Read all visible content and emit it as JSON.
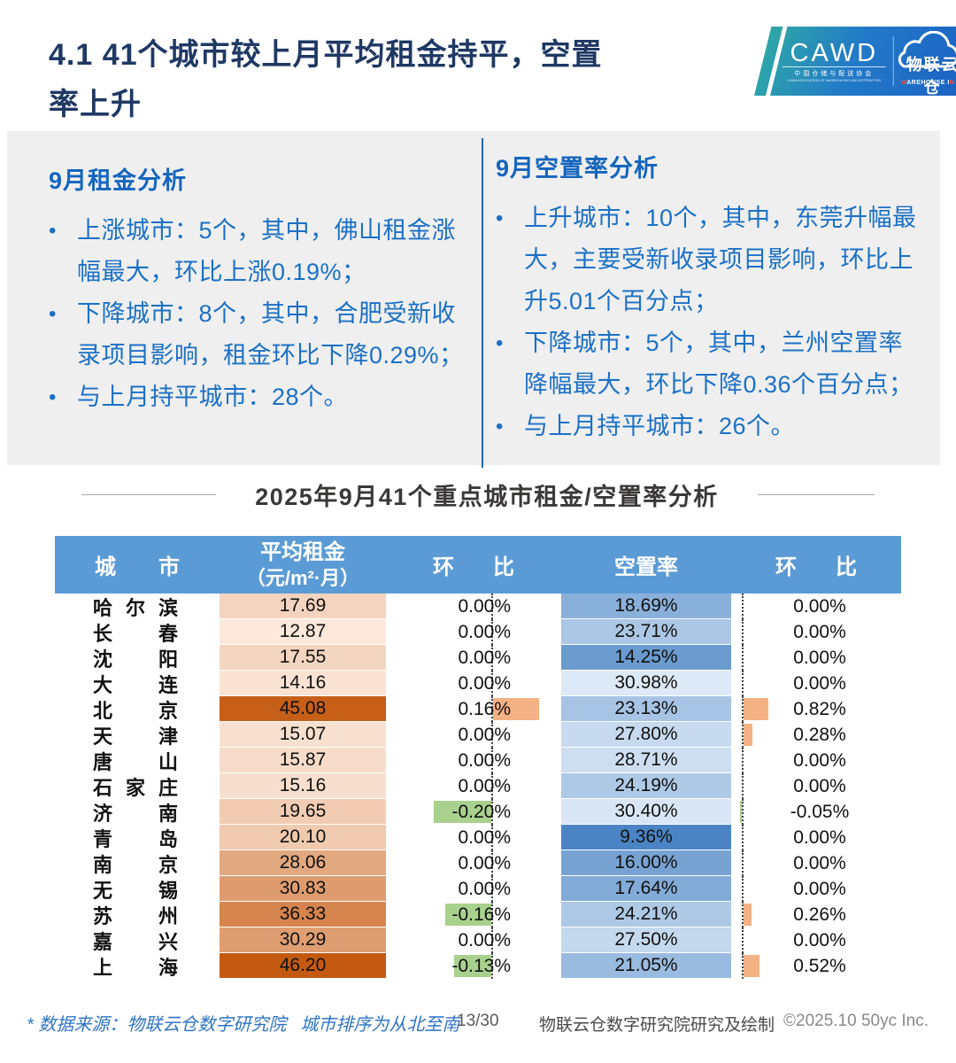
{
  "header": {
    "title_line1": "4.1 41个城市较上月平均租金持平，空置",
    "title_line2": "率上升",
    "logo": {
      "cawd": "CAWD",
      "cawd_cn": "中国仓储与配送协会",
      "cawd_en": "CHINA ASSOCIATION OF WAREHOUSING AND DISTRIBUTION",
      "cloud_cn": "物联云仓",
      "cloud_en_parts": [
        {
          "t": "W",
          "red": true
        },
        {
          "t": "AREHOUSE I",
          "red": false
        },
        {
          "t": "N",
          "red": true
        },
        {
          "t": " ",
          "red": false
        },
        {
          "t": "C",
          "red": true
        },
        {
          "t": "LOUD",
          "red": false
        }
      ]
    }
  },
  "analysis": {
    "sections": [
      {
        "id": "rent",
        "heading": "9月租金分析",
        "bullets": [
          "上涨城市：5个，其中，佛山租金涨幅最大，环比上涨0.19%；",
          "下降城市：8个，其中，合肥受新收录项目影响，租金环比下降0.29%；",
          "与上月持平城市：28个。"
        ]
      },
      {
        "id": "vacancy",
        "heading": "9月空置率分析",
        "bullets": [
          "上升城市：10个，其中，东莞升幅最大，主要受新收录项目影响，环比上升5.01个百分点；",
          "下降城市：5个，其中，兰州空置率降幅最大，环比下降0.36个百分点；",
          "与上月持平城市：26个。"
        ]
      }
    ]
  },
  "table": {
    "title": "2025年9月41个重点城市租金/空置率分析",
    "header": {
      "city": "城市",
      "rent_line1": "平均租金",
      "rent_line2": "（元/m²·月）",
      "mom1": "环比",
      "vacancy": "空置率",
      "mom2": "环比"
    }
  },
  "chart_data": {
    "type": "table",
    "title": "2025年9月41个重点城市租金/空置率分析",
    "columns": [
      "城市",
      "平均租金（元/m²·月）",
      "环比",
      "空置率",
      "环比"
    ],
    "rows": [
      {
        "city": "哈尔滨",
        "rent": 17.69,
        "rent_mom": 0.0,
        "vacancy": 18.69,
        "vacancy_mom": 0.0
      },
      {
        "city": "长春",
        "rent": 12.87,
        "rent_mom": 0.0,
        "vacancy": 23.71,
        "vacancy_mom": 0.0
      },
      {
        "city": "沈阳",
        "rent": 17.55,
        "rent_mom": 0.0,
        "vacancy": 14.25,
        "vacancy_mom": 0.0
      },
      {
        "city": "大连",
        "rent": 14.16,
        "rent_mom": 0.0,
        "vacancy": 30.98,
        "vacancy_mom": 0.0
      },
      {
        "city": "北京",
        "rent": 45.08,
        "rent_mom": 0.16,
        "vacancy": 23.13,
        "vacancy_mom": 0.82
      },
      {
        "city": "天津",
        "rent": 15.07,
        "rent_mom": 0.0,
        "vacancy": 27.8,
        "vacancy_mom": 0.28
      },
      {
        "city": "唐山",
        "rent": 15.87,
        "rent_mom": 0.0,
        "vacancy": 28.71,
        "vacancy_mom": 0.0
      },
      {
        "city": "石家庄",
        "rent": 15.16,
        "rent_mom": 0.0,
        "vacancy": 24.19,
        "vacancy_mom": 0.0
      },
      {
        "city": "济南",
        "rent": 19.65,
        "rent_mom": -0.2,
        "vacancy": 30.4,
        "vacancy_mom": -0.05
      },
      {
        "city": "青岛",
        "rent": 20.1,
        "rent_mom": 0.0,
        "vacancy": 9.36,
        "vacancy_mom": 0.0
      },
      {
        "city": "南京",
        "rent": 28.06,
        "rent_mom": 0.0,
        "vacancy": 16.0,
        "vacancy_mom": 0.0
      },
      {
        "city": "无锡",
        "rent": 30.83,
        "rent_mom": 0.0,
        "vacancy": 17.64,
        "vacancy_mom": 0.0
      },
      {
        "city": "苏州",
        "rent": 36.33,
        "rent_mom": -0.16,
        "vacancy": 24.21,
        "vacancy_mom": 0.26
      },
      {
        "city": "嘉兴",
        "rent": 30.29,
        "rent_mom": 0.0,
        "vacancy": 27.5,
        "vacancy_mom": 0.0
      },
      {
        "city": "上海",
        "rent": 46.2,
        "rent_mom": -0.13,
        "vacancy": 21.05,
        "vacancy_mom": 0.52
      }
    ],
    "scales": {
      "rent_min": 12.87,
      "rent_max": 46.2,
      "vacancy_min": 9.36,
      "vacancy_max": 30.98
    },
    "layout_hints": {
      "heatmap_columns": [
        "rent",
        "vacancy"
      ],
      "bar_columns": [
        "rent_mom",
        "vacancy_mom"
      ],
      "grid": false
    }
  },
  "colors": {
    "title": "#1F3864",
    "accent_blue": "#1B70C6",
    "panel_bg": "#EFEFEF",
    "divider": "#2265B0",
    "table_header_bg": "#5B9BD5",
    "rent_min_color": "#FCE9DB",
    "rent_max_color": "#C45A11",
    "vacancy_low_color": "#4A84C4",
    "vacancy_high_color": "#DCE9F6",
    "positive_bar": "#F4B183",
    "negative_bar": "#A9D18E"
  },
  "footer": {
    "note_source": "* 数据来源：物联云仓数字研究院",
    "note_order": "城市排序为从北至南",
    "page": "13/30",
    "credit": "物联云仓数字研究院研究及绘制",
    "copyright": "©2025.10 50yc Inc."
  }
}
